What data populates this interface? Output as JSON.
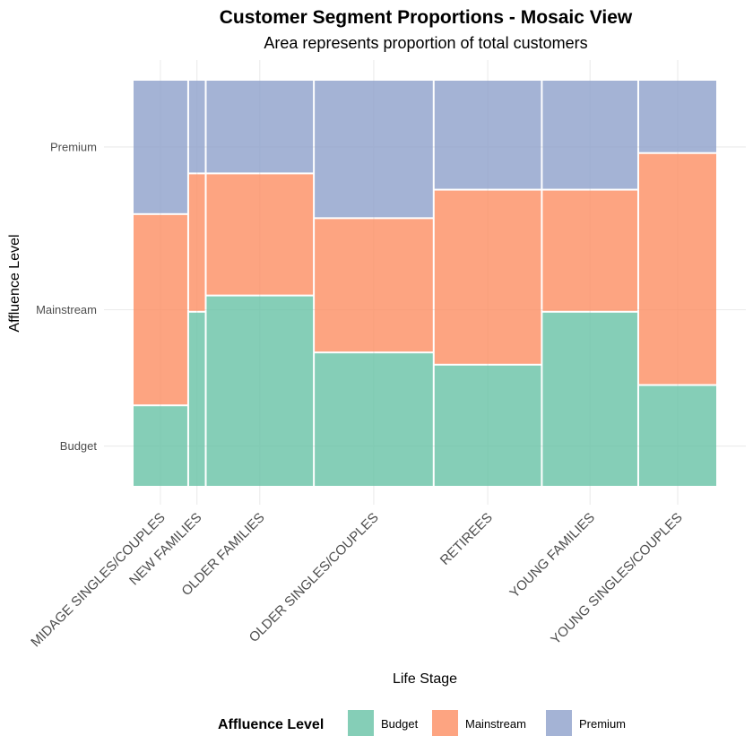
{
  "chart_data": {
    "type": "mosaic",
    "title": "Customer Segment Proportions - Mosaic View",
    "subtitle": "Area represents proportion of total customers",
    "xlabel": "Life Stage",
    "ylabel": "Affluence Level",
    "categories": [
      "MIDAGE SINGLES/COUPLES",
      "NEW FAMILIES",
      "OLDER FAMILIES",
      "OLDER SINGLES/COUPLES",
      "RETIREES",
      "YOUNG FAMILIES",
      "YOUNG SINGLES/COUPLES"
    ],
    "column_shares": [
      0.095,
      0.03,
      0.185,
      0.205,
      0.185,
      0.165,
      0.135
    ],
    "y_ticks": [
      "Budget",
      "Mainstream",
      "Premium"
    ],
    "grid": true,
    "legend_position": "bottom",
    "legend_title": "Affluence Level",
    "series": [
      {
        "name": "Budget",
        "color": "#66c2a5",
        "values": [
          0.2,
          0.43,
          0.47,
          0.33,
          0.3,
          0.43,
          0.25
        ]
      },
      {
        "name": "Mainstream",
        "color": "#fc8d62",
        "values": [
          0.47,
          0.34,
          0.3,
          0.33,
          0.43,
          0.3,
          0.57
        ]
      },
      {
        "name": "Premium",
        "color": "#8da0cb",
        "values": [
          0.33,
          0.23,
          0.23,
          0.34,
          0.27,
          0.27,
          0.18
        ]
      }
    ]
  }
}
